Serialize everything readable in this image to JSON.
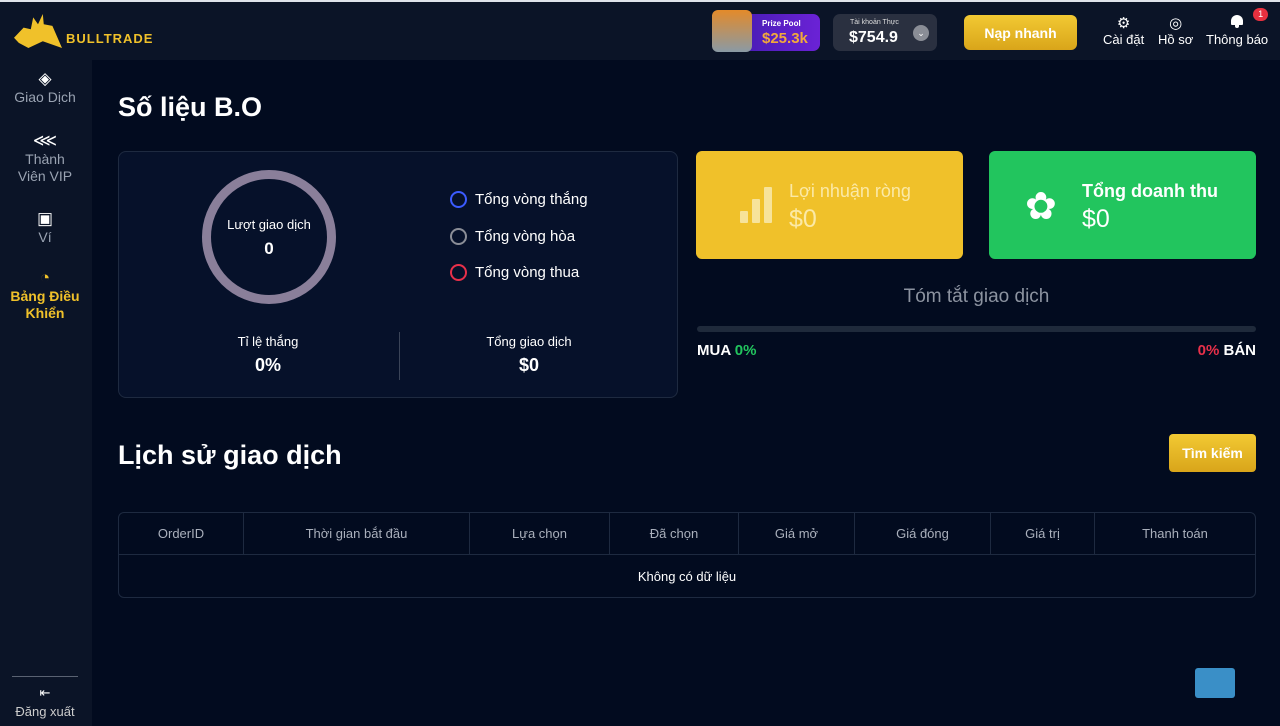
{
  "header": {
    "brand": "BULLTRADE",
    "prize_label": "Prize Pool",
    "prize_value": "$25.3k",
    "account_label": "Tài khoản Thực",
    "account_value": "$754.9",
    "deposit": "Nạp nhanh",
    "settings": "Cài đặt",
    "profile": "Hồ sơ",
    "notifications": "Thông báo",
    "notif_count": "1"
  },
  "sidebar": {
    "items": [
      {
        "label": "Giao Dịch",
        "icon": "diamond-icon"
      },
      {
        "label": "Thành Viên VIP",
        "icon": "share-icon"
      },
      {
        "label": "Ví",
        "icon": "wallet-icon"
      },
      {
        "label": "Bảng Điều Khiển",
        "icon": "dashboard-icon"
      }
    ],
    "logout": "Đăng xuất"
  },
  "stats": {
    "title": "Số liệu B.O",
    "ring_label": "Lượt giao dịch",
    "ring_value": "0",
    "legend": [
      {
        "label": "Tổng vòng thắng",
        "color": "#3b5bff"
      },
      {
        "label": "Tổng vòng hòa",
        "color": "#8a8d96"
      },
      {
        "label": "Tổng vòng thua",
        "color": "#e8304a"
      }
    ],
    "win_rate_label": "Tỉ lệ thắng",
    "win_rate": "0%",
    "total_label": "Tổng giao dịch",
    "total": "$0"
  },
  "profit": {
    "label": "Lợi nhuận ròng",
    "value": "$0",
    "color": "#f0c12a"
  },
  "revenue": {
    "label": "Tổng doanh thu",
    "value": "$0",
    "color": "#22c55e"
  },
  "summary": {
    "title": "Tóm tắt giao dịch",
    "buy_label": "MUA",
    "buy_pct": "0%",
    "sell_label": "BÁN",
    "sell_pct": "0%"
  },
  "history": {
    "title": "Lịch sử giao dịch",
    "search": "Tìm kiếm",
    "columns": [
      "OrderID",
      "Thời gian bắt đầu",
      "Lựa chọn",
      "Đã chọn",
      "Giá mở",
      "Giá đóng",
      "Giá trị",
      "Thanh toán"
    ],
    "empty": "Không có dữ liệu"
  }
}
